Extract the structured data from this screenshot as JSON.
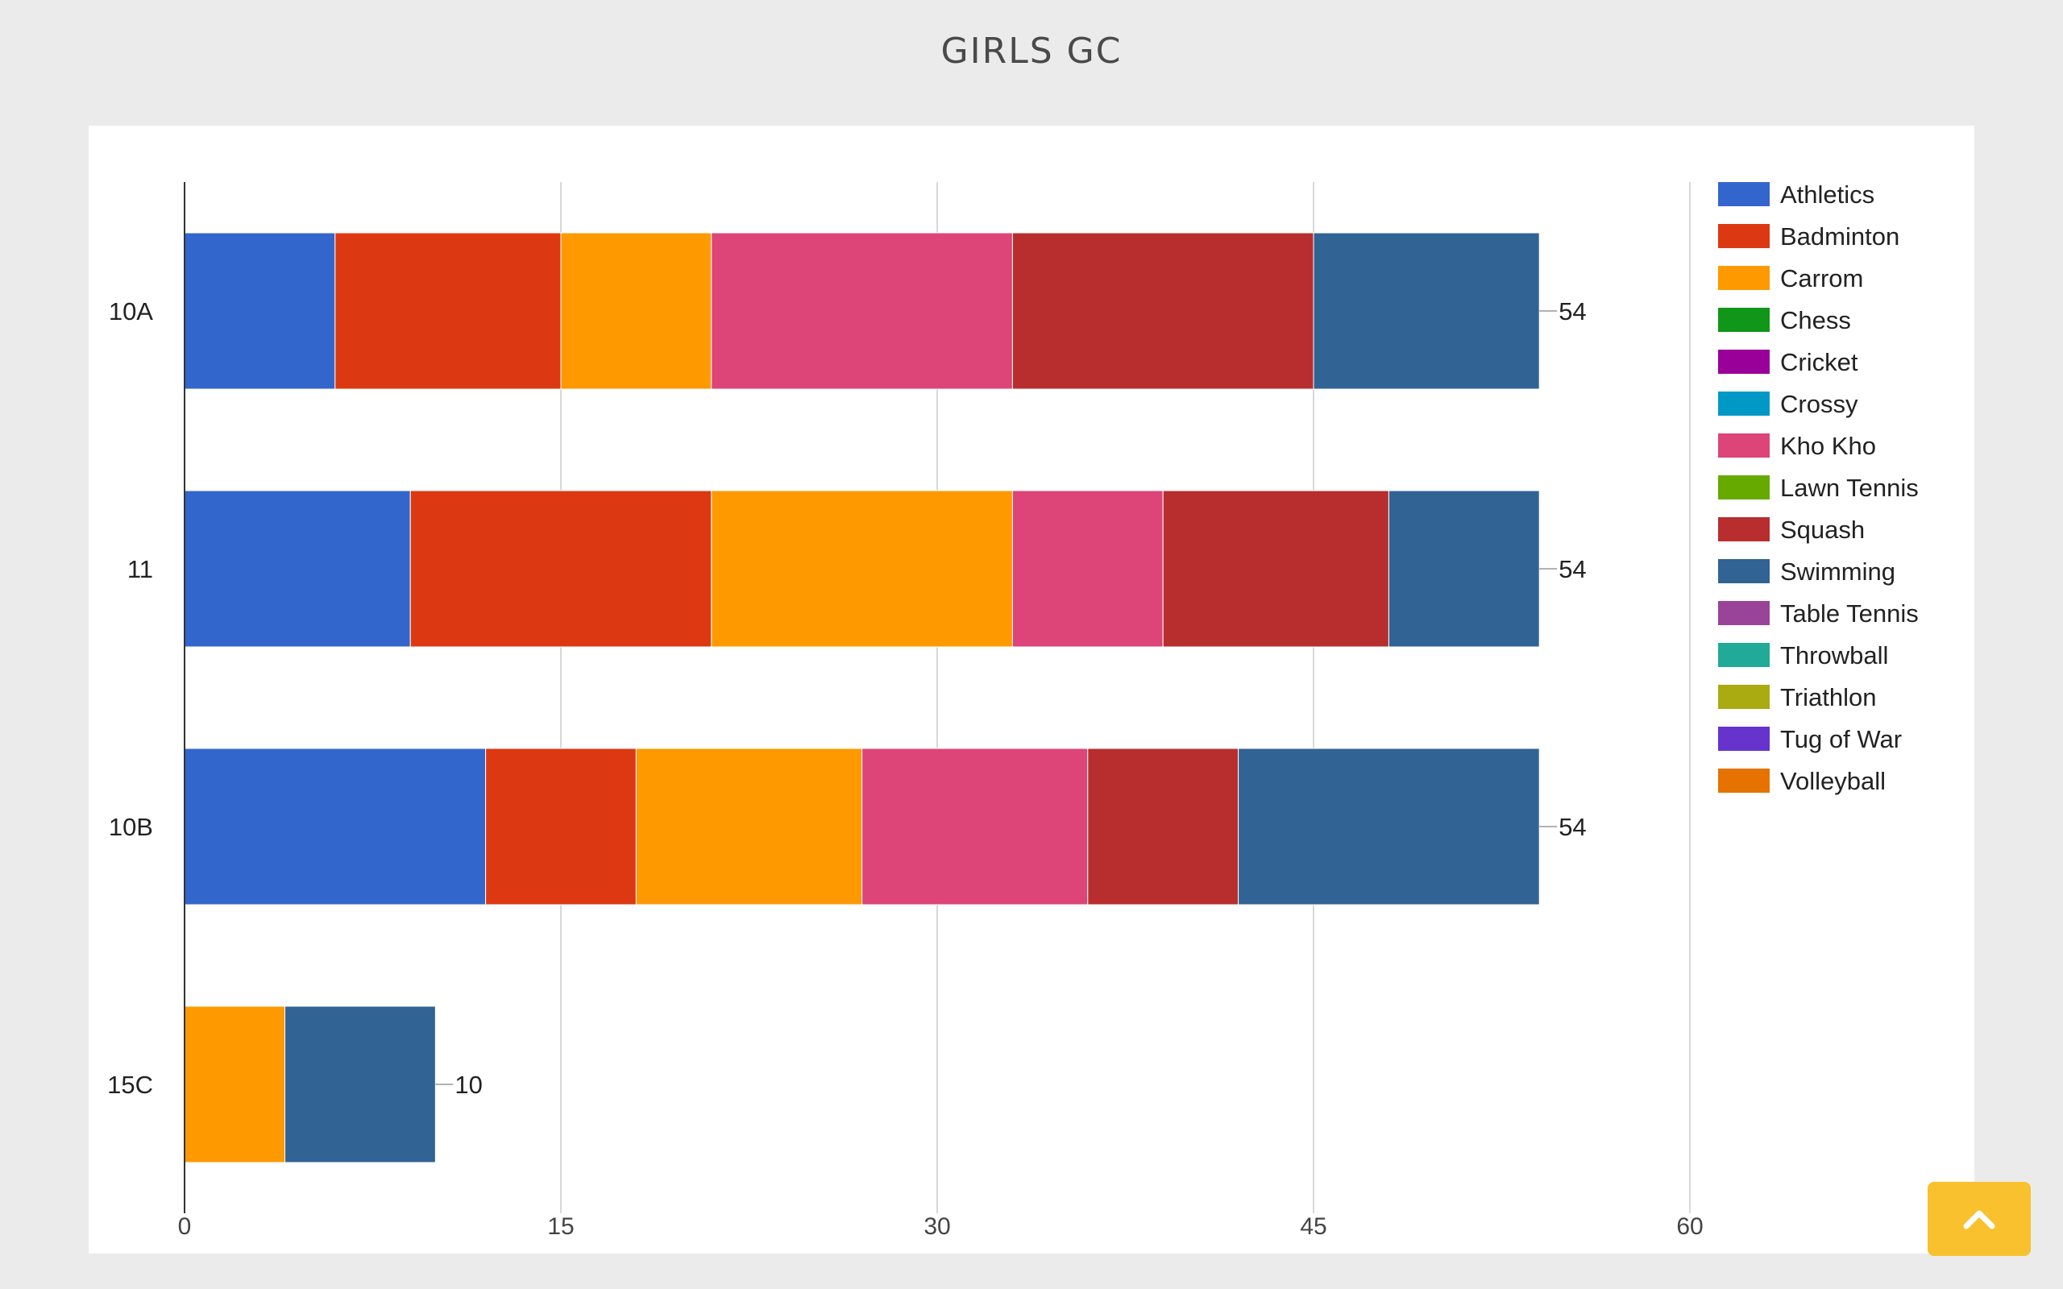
{
  "page": {
    "title": "GIRLS GC"
  },
  "scroll_top_icon": "chevron-up-icon",
  "chart_data": {
    "type": "bar",
    "orientation": "horizontal",
    "stacked": true,
    "title": "",
    "xlabel": "",
    "ylabel": "",
    "xlim": [
      0,
      60
    ],
    "xticks": [
      "0",
      "15",
      "30",
      "45",
      "60"
    ],
    "grid": true,
    "legend_position": "right",
    "categories": [
      "10A",
      "11",
      "10B",
      "15C"
    ],
    "totals": [
      "54",
      "54",
      "54",
      "10"
    ],
    "series": [
      {
        "name": "Athletics",
        "color": "#3366cc",
        "values": [
          6,
          9,
          12,
          0
        ]
      },
      {
        "name": "Badminton",
        "color": "#dc3912",
        "values": [
          9,
          12,
          6,
          0
        ]
      },
      {
        "name": "Carrom",
        "color": "#ff9900",
        "values": [
          6,
          12,
          9,
          4
        ]
      },
      {
        "name": "Chess",
        "color": "#109618",
        "values": [
          0,
          0,
          0,
          0
        ]
      },
      {
        "name": "Cricket",
        "color": "#990099",
        "values": [
          0,
          0,
          0,
          0
        ]
      },
      {
        "name": "Crossy",
        "color": "#0099c6",
        "values": [
          0,
          0,
          0,
          0
        ]
      },
      {
        "name": "Kho Kho",
        "color": "#dd4477",
        "values": [
          12,
          6,
          9,
          0
        ]
      },
      {
        "name": "Lawn Tennis",
        "color": "#66aa00",
        "values": [
          0,
          0,
          0,
          0
        ]
      },
      {
        "name": "Squash",
        "color": "#b82e2e",
        "values": [
          12,
          9,
          6,
          0
        ]
      },
      {
        "name": "Swimming",
        "color": "#316395",
        "values": [
          9,
          6,
          12,
          6
        ]
      },
      {
        "name": "Table Tennis",
        "color": "#994499",
        "values": [
          0,
          0,
          0,
          0
        ]
      },
      {
        "name": "Throwball",
        "color": "#22aa99",
        "values": [
          0,
          0,
          0,
          0
        ]
      },
      {
        "name": "Triathlon",
        "color": "#aaaa11",
        "values": [
          0,
          0,
          0,
          0
        ]
      },
      {
        "name": "Tug of War",
        "color": "#6633cc",
        "values": [
          0,
          0,
          0,
          0
        ]
      },
      {
        "name": "Volleyball",
        "color": "#e67300",
        "values": [
          0,
          0,
          0,
          0
        ]
      }
    ]
  }
}
